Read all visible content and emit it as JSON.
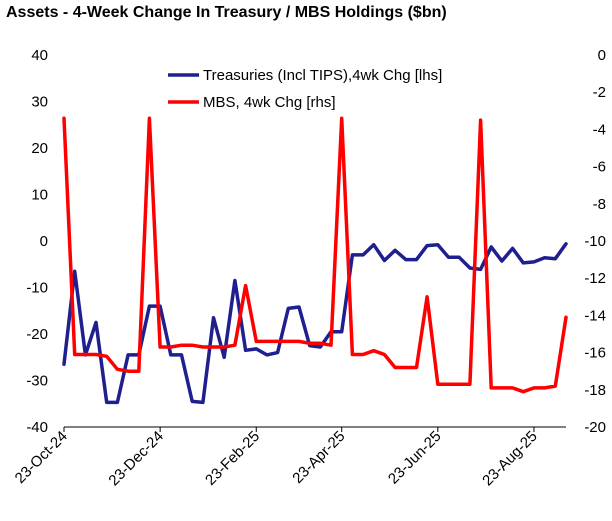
{
  "chart_data": {
    "type": "line",
    "title": "Assets - 4-Week Change In Treasury / MBS Holdings ($bn)",
    "x_tick_labels": [
      "23-Oct-24",
      "23-Dec-24",
      "23-Feb-25",
      "23-Apr-25",
      "23-Jun-25",
      "23-Aug-25"
    ],
    "x_tick_index": [
      0,
      9,
      18,
      26,
      35,
      44
    ],
    "y_left": {
      "min": -40,
      "max": 40,
      "ticks": [
        "40",
        "30",
        "20",
        "10",
        "0",
        "-10",
        "-20",
        "-30",
        "-40"
      ]
    },
    "y_right": {
      "min": -20,
      "max": 0,
      "ticks": [
        "0",
        "-2",
        "-4",
        "-6",
        "-8",
        "-10",
        "-12",
        "-14",
        "-16",
        "-18",
        "-20"
      ]
    },
    "series": [
      {
        "name": "Treasuries (Incl TIPS),4wk Chg [lhs]",
        "axis": "left",
        "color": "#1f1f8f",
        "values": [
          -26.5,
          -6.5,
          -24.5,
          -17.5,
          -34.7,
          -34.7,
          -24.5,
          -24.5,
          -14,
          -14,
          -24.5,
          -24.5,
          -34.5,
          -34.7,
          -16.5,
          -25,
          -8.5,
          -23.5,
          -23.2,
          -24.5,
          -24,
          -14.5,
          -14.2,
          -22.5,
          -22.8,
          -19.5,
          -19.5,
          -3,
          -3,
          -0.8,
          -4.2,
          -2,
          -4,
          -4,
          -1,
          -0.8,
          -3.5,
          -3.5,
          -5.8,
          -6.1,
          -1.3,
          -4.3,
          -1.6,
          -4.7,
          -4.5,
          -3.6,
          -3.8,
          -0.6
        ]
      },
      {
        "name": "MBS, 4wk Chg [rhs]",
        "axis": "right",
        "color": "#ff0000",
        "values": [
          -3.4,
          -16.1,
          -16.1,
          -16.1,
          -16.2,
          -16.9,
          -17,
          -17,
          -3.4,
          -15.7,
          -15.7,
          -15.6,
          -15.6,
          -15.7,
          -15.7,
          -15.7,
          -15.6,
          -12.4,
          -15.4,
          -15.4,
          -15.4,
          -15.4,
          -15.4,
          -15.5,
          -15.5,
          -15.6,
          -3.4,
          -16.1,
          -16.1,
          -15.9,
          -16.1,
          -16.8,
          -16.8,
          -16.8,
          -13,
          -17.7,
          -17.7,
          -17.7,
          -17.7,
          -3.5,
          -17.9,
          -17.9,
          -17.9,
          -18.1,
          -17.9,
          -17.9,
          -17.8,
          -14.1
        ]
      }
    ]
  }
}
